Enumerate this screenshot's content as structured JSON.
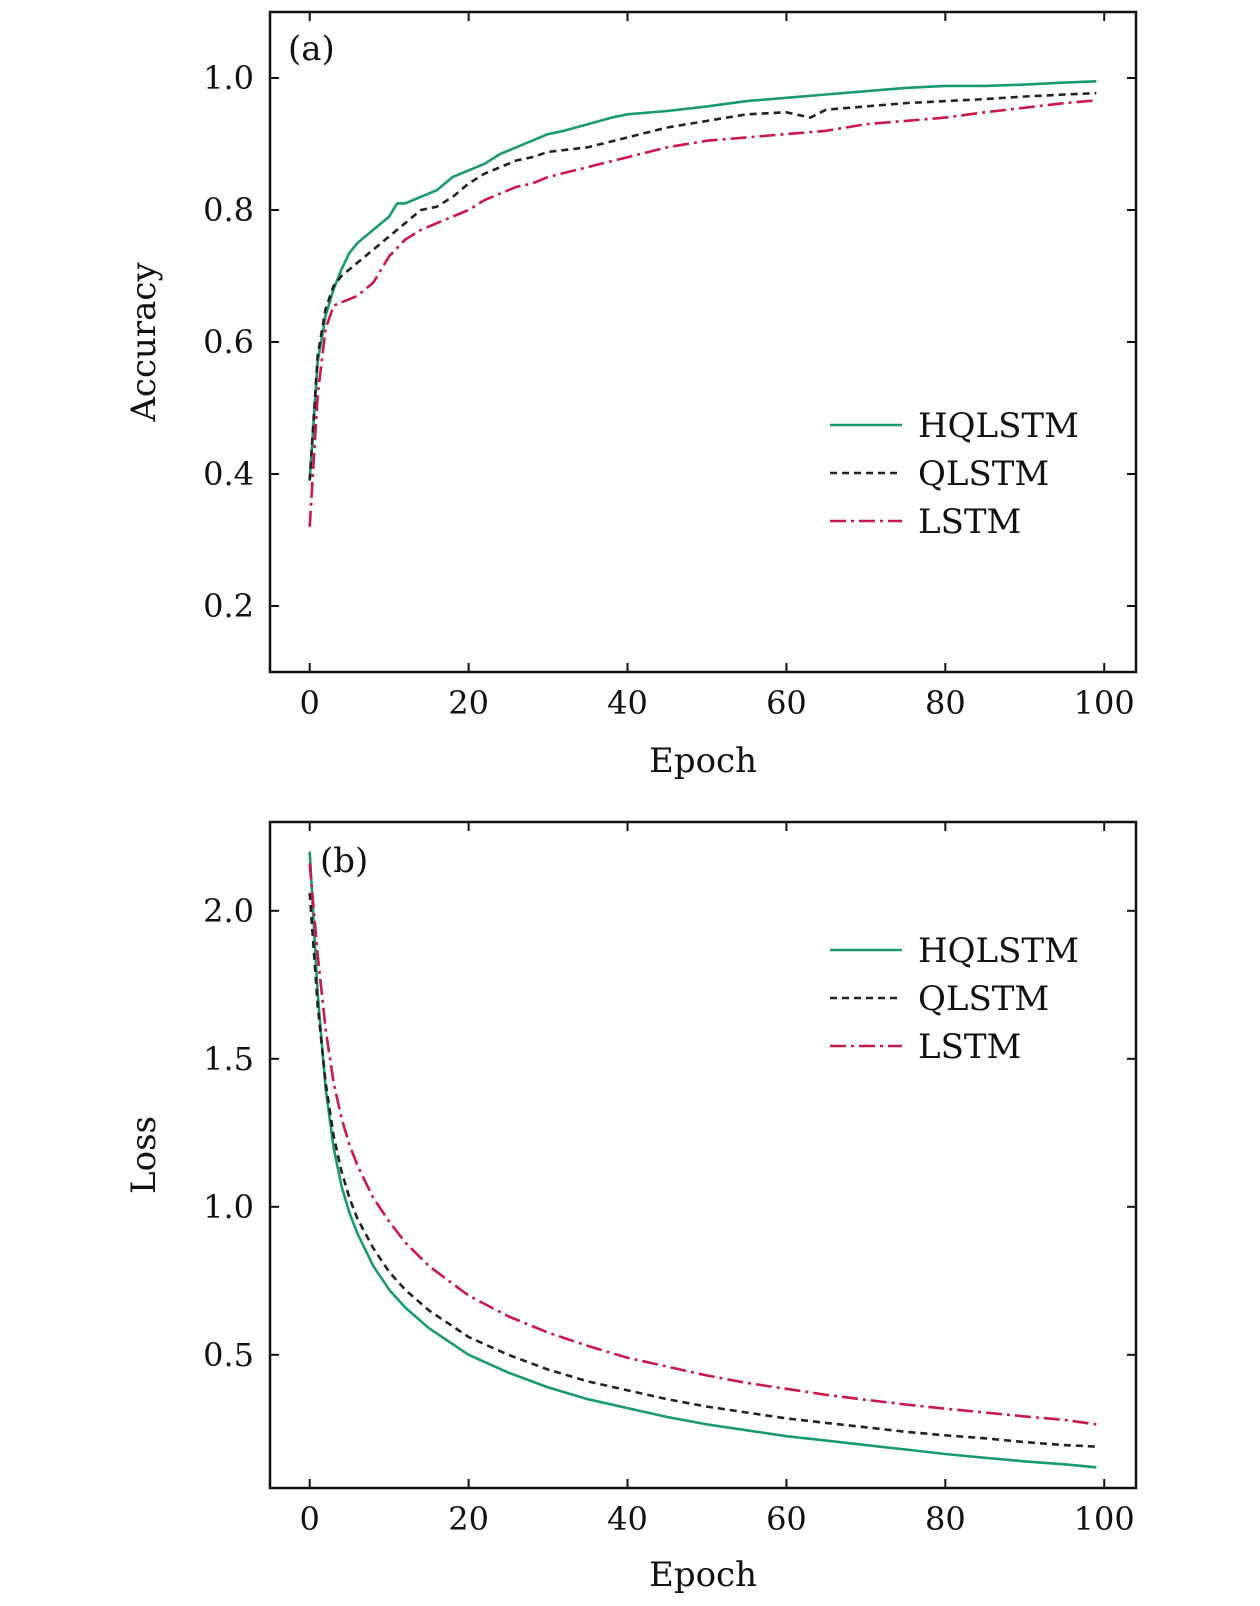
{
  "chart_data": [
    {
      "type": "line",
      "panel_label": "(a)",
      "xlabel": "Epoch",
      "ylabel": "Accuracy",
      "xlim": [
        -5,
        104
      ],
      "ylim": [
        0.1,
        1.1
      ],
      "xticks": [
        0,
        20,
        40,
        60,
        80,
        100
      ],
      "yticks": [
        0.2,
        0.4,
        0.6,
        0.8,
        1.0
      ],
      "xtick_labels": [
        "0",
        "20",
        "40",
        "60",
        "80",
        "100"
      ],
      "ytick_labels": [
        "0.2",
        "0.4",
        "0.6",
        "0.8",
        "1.0"
      ],
      "grid": false,
      "legend_position": "center-right",
      "series": [
        {
          "name": "HQLSTM",
          "color": "#1a9a6c",
          "dash": "solid",
          "points": [
            [
              0,
              0.39
            ],
            [
              1,
              0.57
            ],
            [
              2,
              0.64
            ],
            [
              3,
              0.68
            ],
            [
              4,
              0.71
            ],
            [
              5,
              0.735
            ],
            [
              6,
              0.75
            ],
            [
              8,
              0.77
            ],
            [
              10,
              0.79
            ],
            [
              11,
              0.81
            ],
            [
              12,
              0.81
            ],
            [
              14,
              0.82
            ],
            [
              16,
              0.83
            ],
            [
              18,
              0.85
            ],
            [
              20,
              0.86
            ],
            [
              22,
              0.87
            ],
            [
              24,
              0.885
            ],
            [
              26,
              0.895
            ],
            [
              28,
              0.905
            ],
            [
              30,
              0.915
            ],
            [
              32,
              0.92
            ],
            [
              35,
              0.93
            ],
            [
              38,
              0.94
            ],
            [
              40,
              0.945
            ],
            [
              45,
              0.95
            ],
            [
              50,
              0.957
            ],
            [
              55,
              0.965
            ],
            [
              60,
              0.97
            ],
            [
              65,
              0.975
            ],
            [
              70,
              0.98
            ],
            [
              75,
              0.985
            ],
            [
              80,
              0.988
            ],
            [
              85,
              0.988
            ],
            [
              90,
              0.99
            ],
            [
              95,
              0.993
            ],
            [
              99,
              0.995
            ]
          ]
        },
        {
          "name": "QLSTM",
          "color": "#222222",
          "dash": "dashed",
          "points": [
            [
              0,
              0.39
            ],
            [
              1,
              0.58
            ],
            [
              2,
              0.65
            ],
            [
              3,
              0.685
            ],
            [
              4,
              0.7
            ],
            [
              6,
              0.72
            ],
            [
              8,
              0.74
            ],
            [
              10,
              0.76
            ],
            [
              12,
              0.78
            ],
            [
              14,
              0.8
            ],
            [
              16,
              0.805
            ],
            [
              18,
              0.82
            ],
            [
              20,
              0.84
            ],
            [
              22,
              0.855
            ],
            [
              24,
              0.865
            ],
            [
              26,
              0.875
            ],
            [
              28,
              0.88
            ],
            [
              30,
              0.888
            ],
            [
              35,
              0.895
            ],
            [
              40,
              0.91
            ],
            [
              45,
              0.925
            ],
            [
              50,
              0.935
            ],
            [
              55,
              0.945
            ],
            [
              60,
              0.948
            ],
            [
              63,
              0.94
            ],
            [
              65,
              0.952
            ],
            [
              70,
              0.957
            ],
            [
              75,
              0.962
            ],
            [
              80,
              0.965
            ],
            [
              85,
              0.968
            ],
            [
              90,
              0.972
            ],
            [
              95,
              0.975
            ],
            [
              99,
              0.977
            ]
          ]
        },
        {
          "name": "LSTM",
          "color": "#c8194a",
          "dash": "dashdot",
          "points": [
            [
              0,
              0.32
            ],
            [
              1,
              0.52
            ],
            [
              2,
              0.62
            ],
            [
              3,
              0.655
            ],
            [
              4,
              0.66
            ],
            [
              6,
              0.67
            ],
            [
              8,
              0.69
            ],
            [
              10,
              0.73
            ],
            [
              12,
              0.755
            ],
            [
              14,
              0.77
            ],
            [
              16,
              0.78
            ],
            [
              18,
              0.79
            ],
            [
              20,
              0.8
            ],
            [
              22,
              0.815
            ],
            [
              24,
              0.825
            ],
            [
              26,
              0.835
            ],
            [
              28,
              0.84
            ],
            [
              30,
              0.85
            ],
            [
              35,
              0.865
            ],
            [
              40,
              0.88
            ],
            [
              45,
              0.895
            ],
            [
              50,
              0.905
            ],
            [
              55,
              0.91
            ],
            [
              60,
              0.915
            ],
            [
              65,
              0.92
            ],
            [
              70,
              0.93
            ],
            [
              75,
              0.935
            ],
            [
              80,
              0.94
            ],
            [
              85,
              0.948
            ],
            [
              90,
              0.955
            ],
            [
              95,
              0.962
            ],
            [
              99,
              0.966
            ]
          ]
        }
      ]
    },
    {
      "type": "line",
      "panel_label": "(b)",
      "xlabel": "Epoch",
      "ylabel": "Loss",
      "xlim": [
        -5,
        104
      ],
      "ylim": [
        0.05,
        2.3
      ],
      "xticks": [
        0,
        20,
        40,
        60,
        80,
        100
      ],
      "yticks": [
        0.5,
        1.0,
        1.5,
        2.0
      ],
      "xtick_labels": [
        "0",
        "20",
        "40",
        "60",
        "80",
        "100"
      ],
      "ytick_labels": [
        "0.5",
        "1.0",
        "1.5",
        "2.0"
      ],
      "grid": false,
      "legend_position": "top-right",
      "series": [
        {
          "name": "HQLSTM",
          "color": "#1a9a6c",
          "dash": "solid",
          "points": [
            [
              0,
              2.2
            ],
            [
              1,
              1.72
            ],
            [
              2,
              1.4
            ],
            [
              3,
              1.2
            ],
            [
              4,
              1.07
            ],
            [
              5,
              0.98
            ],
            [
              6,
              0.91
            ],
            [
              8,
              0.8
            ],
            [
              10,
              0.72
            ],
            [
              12,
              0.66
            ],
            [
              15,
              0.59
            ],
            [
              20,
              0.5
            ],
            [
              25,
              0.44
            ],
            [
              30,
              0.39
            ],
            [
              35,
              0.35
            ],
            [
              40,
              0.32
            ],
            [
              45,
              0.29
            ],
            [
              50,
              0.265
            ],
            [
              55,
              0.245
            ],
            [
              60,
              0.225
            ],
            [
              65,
              0.21
            ],
            [
              70,
              0.195
            ],
            [
              75,
              0.18
            ],
            [
              80,
              0.165
            ],
            [
              85,
              0.152
            ],
            [
              90,
              0.14
            ],
            [
              95,
              0.13
            ],
            [
              99,
              0.12
            ]
          ]
        },
        {
          "name": "QLSTM",
          "color": "#222222",
          "dash": "dashed",
          "points": [
            [
              0,
              2.06
            ],
            [
              1,
              1.68
            ],
            [
              2,
              1.42
            ],
            [
              3,
              1.24
            ],
            [
              4,
              1.12
            ],
            [
              5,
              1.03
            ],
            [
              6,
              0.96
            ],
            [
              8,
              0.86
            ],
            [
              10,
              0.78
            ],
            [
              12,
              0.72
            ],
            [
              15,
              0.65
            ],
            [
              20,
              0.56
            ],
            [
              25,
              0.5
            ],
            [
              30,
              0.45
            ],
            [
              35,
              0.41
            ],
            [
              40,
              0.38
            ],
            [
              45,
              0.35
            ],
            [
              50,
              0.325
            ],
            [
              55,
              0.305
            ],
            [
              60,
              0.285
            ],
            [
              65,
              0.27
            ],
            [
              70,
              0.255
            ],
            [
              75,
              0.24
            ],
            [
              80,
              0.228
            ],
            [
              85,
              0.218
            ],
            [
              90,
              0.205
            ],
            [
              95,
              0.195
            ],
            [
              99,
              0.19
            ]
          ]
        },
        {
          "name": "LSTM",
          "color": "#c8194a",
          "dash": "dashdot",
          "points": [
            [
              0,
              2.16
            ],
            [
              1,
              1.85
            ],
            [
              2,
              1.6
            ],
            [
              3,
              1.42
            ],
            [
              4,
              1.3
            ],
            [
              5,
              1.21
            ],
            [
              6,
              1.14
            ],
            [
              8,
              1.03
            ],
            [
              10,
              0.95
            ],
            [
              12,
              0.88
            ],
            [
              15,
              0.8
            ],
            [
              20,
              0.7
            ],
            [
              25,
              0.63
            ],
            [
              30,
              0.575
            ],
            [
              35,
              0.53
            ],
            [
              40,
              0.49
            ],
            [
              45,
              0.46
            ],
            [
              50,
              0.43
            ],
            [
              55,
              0.405
            ],
            [
              60,
              0.385
            ],
            [
              65,
              0.365
            ],
            [
              70,
              0.348
            ],
            [
              75,
              0.332
            ],
            [
              80,
              0.318
            ],
            [
              85,
              0.305
            ],
            [
              90,
              0.292
            ],
            [
              95,
              0.28
            ],
            [
              99,
              0.265
            ]
          ]
        }
      ]
    }
  ]
}
